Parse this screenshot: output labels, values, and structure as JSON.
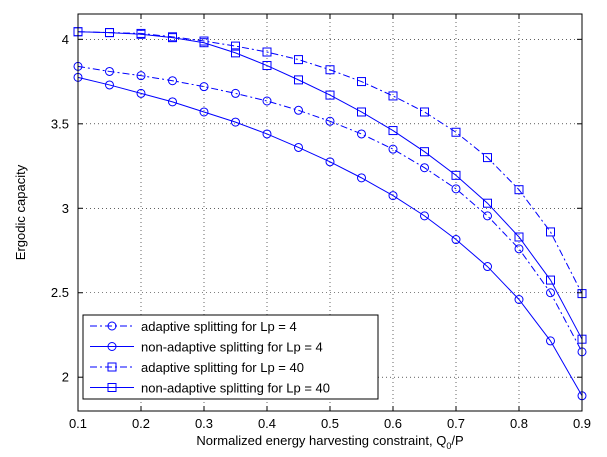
{
  "chart_data": {
    "type": "line",
    "xlabel_main": "Normalized energy harvesting constraint, Q",
    "xlabel_sub": "0",
    "xlabel_tail": "/P",
    "ylabel": "Ergodic capacity",
    "xlim": [
      0.1,
      0.9
    ],
    "ylim": [
      1.8,
      4.15
    ],
    "x_ticks": [
      0.1,
      0.2,
      0.3,
      0.4,
      0.5,
      0.6,
      0.7,
      0.8,
      0.9
    ],
    "x_tick_labels": [
      "0.1",
      "0.2",
      "0.3",
      "0.4",
      "0.5",
      "0.6",
      "0.7",
      "0.8",
      "0.9"
    ],
    "y_ticks": [
      2,
      2.5,
      3,
      3.5,
      4
    ],
    "y_tick_labels": [
      "2",
      "2.5",
      "3",
      "3.5",
      "4"
    ],
    "grid": true,
    "legend_position": "bottom-left",
    "line_color": "#0000ff",
    "x": [
      0.1,
      0.15,
      0.2,
      0.25,
      0.3,
      0.35,
      0.4,
      0.45,
      0.5,
      0.55,
      0.6,
      0.65,
      0.7,
      0.75,
      0.8,
      0.85,
      0.9
    ],
    "series": [
      {
        "name": "adaptive splitting for Lp = 4",
        "style": "dash-dot",
        "marker": "circle",
        "values": [
          3.84,
          3.81,
          3.785,
          3.755,
          3.72,
          3.68,
          3.635,
          3.58,
          3.515,
          3.44,
          3.35,
          3.24,
          3.115,
          2.955,
          2.76,
          2.5,
          2.15
        ]
      },
      {
        "name": "non-adaptive splitting for Lp = 4",
        "style": "solid",
        "marker": "circle",
        "values": [
          3.775,
          3.73,
          3.68,
          3.63,
          3.57,
          3.51,
          3.44,
          3.36,
          3.275,
          3.18,
          3.075,
          2.955,
          2.815,
          2.655,
          2.46,
          2.215,
          1.89
        ]
      },
      {
        "name": "adaptive splitting for Lp = 40",
        "style": "dash-dot",
        "marker": "square",
        "values": [
          4.045,
          4.04,
          4.035,
          4.015,
          3.99,
          3.96,
          3.925,
          3.88,
          3.82,
          3.75,
          3.665,
          3.57,
          3.45,
          3.3,
          3.11,
          2.86,
          2.495
        ]
      },
      {
        "name": "non-adaptive splitting for Lp = 40",
        "style": "solid",
        "marker": "square",
        "values": [
          4.045,
          4.04,
          4.03,
          4.01,
          3.98,
          3.92,
          3.845,
          3.76,
          3.67,
          3.57,
          3.46,
          3.335,
          3.195,
          3.03,
          2.83,
          2.575,
          2.225
        ]
      }
    ]
  }
}
